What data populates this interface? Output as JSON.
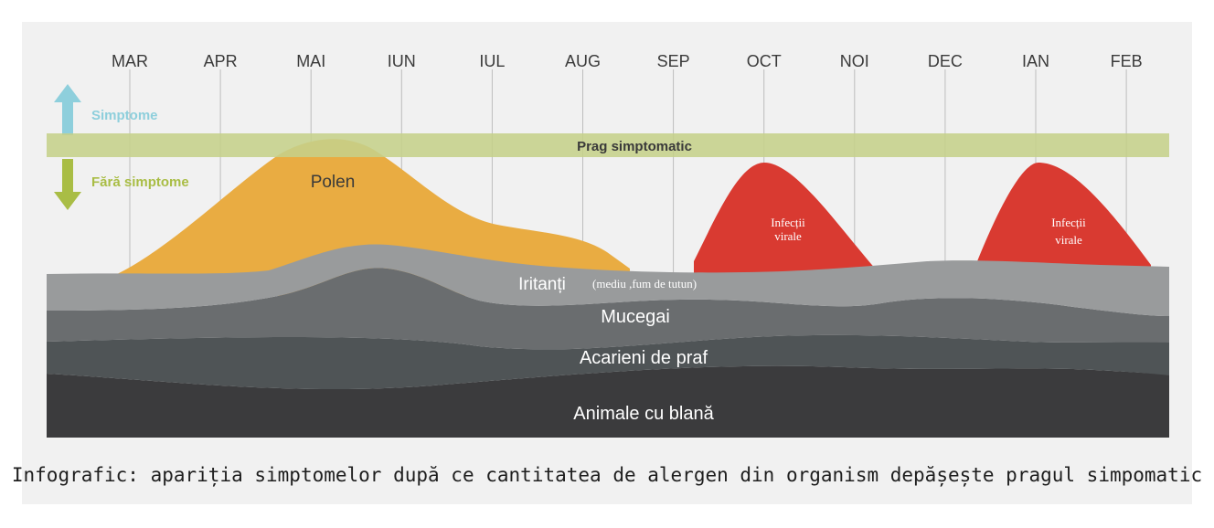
{
  "chart_data": {
    "type": "area",
    "months": [
      "MAR",
      "APR",
      "MAI",
      "IUN",
      "IUL",
      "AUG",
      "SEP",
      "OCT",
      "NOI",
      "DEC",
      "IAN",
      "FEB"
    ],
    "legend": {
      "up_label": "Simptome",
      "down_label": "Fără simptome",
      "up_color": "#8ecfdc",
      "down_color": "#a9bd45"
    },
    "threshold": {
      "label": "Prag simptomatic",
      "color": "#c5d08a"
    },
    "layers": [
      {
        "name": "Animale cu blană",
        "color": "#3b3b3d"
      },
      {
        "name": "Acarieni de praf",
        "color": "#4f5456"
      },
      {
        "name": "Mucegai",
        "color": "#6a6d6f"
      },
      {
        "name": "Iritanți",
        "note": "(mediu ,fum de tutun)",
        "color": "#999b9c"
      }
    ],
    "peaks": [
      {
        "name": "Polen",
        "color": "#e9ac42"
      },
      {
        "name_line1": "Infecții",
        "name_line2": "virale",
        "color": "#d93a31"
      },
      {
        "name_line1": "Infecții",
        "name_line2": "virale",
        "color": "#d93a31"
      }
    ]
  },
  "caption": "Infografic: apariția simptomelor după ce cantitatea de alergen din organism depășește pragul simpomatic"
}
